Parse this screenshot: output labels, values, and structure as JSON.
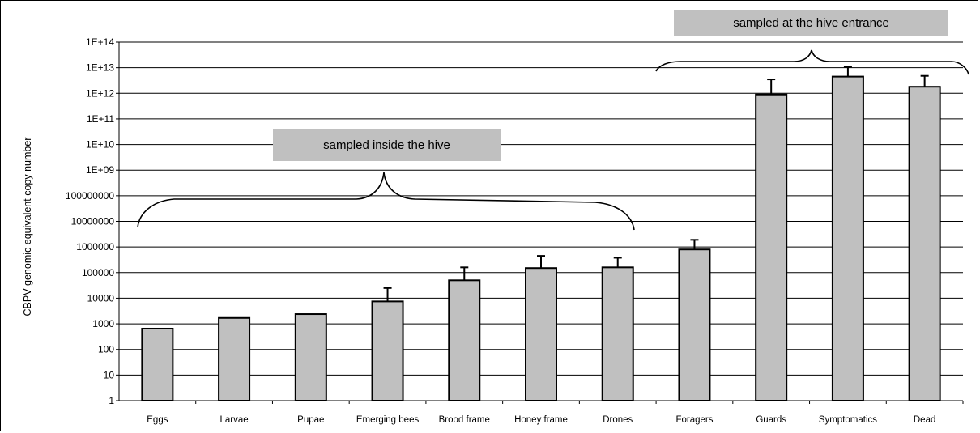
{
  "chart_data": {
    "type": "bar",
    "scale": "log10",
    "ylabel": "CBPV genomic equivalent copy number",
    "xlabel": "",
    "ylim": [
      1,
      100000000000000.0
    ],
    "y_tick_labels": [
      "1",
      "10",
      "100",
      "1000",
      "10000",
      "100000",
      "1000000",
      "10000000",
      "100000000",
      "1E+09",
      "1E+10",
      "1E+11",
      "1E+12",
      "1E+13",
      "1E+14"
    ],
    "grid": true,
    "categories": [
      "Eggs",
      "Larvae",
      "Pupae",
      "Emerging bees",
      "Brood frame",
      "Honey frame",
      "Drones",
      "Foragers",
      "Guards",
      "Symptomatics",
      "Dead"
    ],
    "values": [
      650,
      1700,
      2400,
      7500,
      50000,
      150000,
      160000,
      800000,
      900000000000,
      4500000000000,
      1800000000000
    ],
    "error_upper": [
      null,
      null,
      null,
      25000,
      160000,
      450000,
      380000,
      1900000,
      3500000000000,
      11000000000000,
      4800000000000
    ],
    "bar_color": "#c0c0c0",
    "annotations": [
      {
        "text": "sampled inside the hive",
        "categories": [
          "Eggs",
          "Larvae",
          "Pupae",
          "Emerging bees",
          "Brood frame",
          "Honey frame",
          "Drones"
        ]
      },
      {
        "text": "sampled at the hive entrance",
        "categories": [
          "Foragers",
          "Guards",
          "Symptomatics",
          "Dead"
        ]
      }
    ]
  }
}
